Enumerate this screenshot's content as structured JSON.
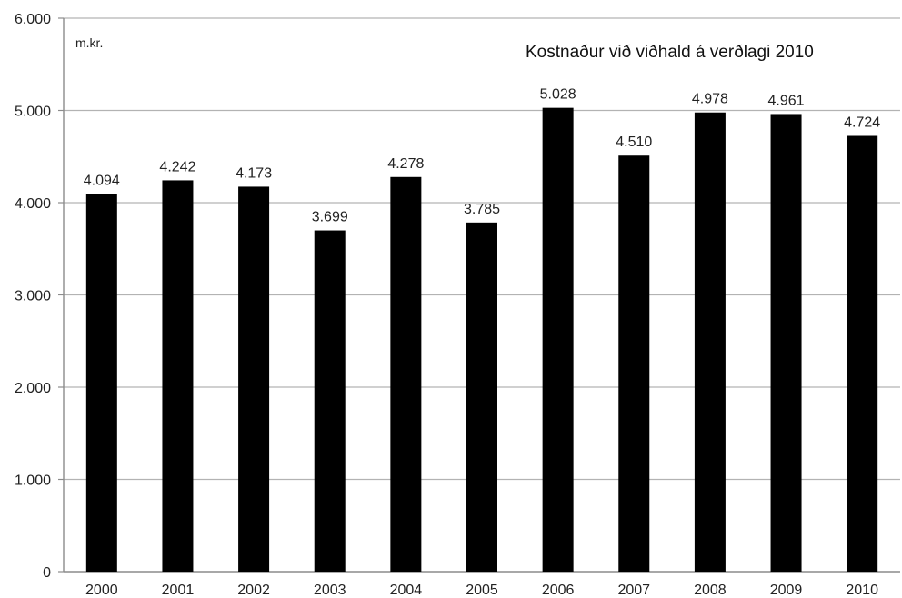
{
  "chart_data": {
    "type": "bar",
    "title": "Kostnaður við viðhald á verðlagi 2010",
    "unit_label": "m.kr.",
    "xlabel": "",
    "ylabel": "",
    "categories": [
      "2000",
      "2001",
      "2002",
      "2003",
      "2004",
      "2005",
      "2006",
      "2007",
      "2008",
      "2009",
      "2010"
    ],
    "values": [
      4094,
      4242,
      4173,
      3699,
      4278,
      3785,
      5028,
      4510,
      4978,
      4961,
      4724
    ],
    "value_labels": [
      "4.094",
      "4.242",
      "4.173",
      "3.699",
      "4.278",
      "3.785",
      "5.028",
      "4.510",
      "4.978",
      "4.961",
      "4.724"
    ],
    "ylim": [
      0,
      6000
    ],
    "yticks": [
      0,
      1000,
      2000,
      3000,
      4000,
      5000,
      6000
    ],
    "ytick_labels": [
      "0",
      "1.000",
      "2.000",
      "3.000",
      "4.000",
      "5.000",
      "6.000"
    ],
    "grid": true,
    "legend": "none",
    "colors": {
      "bar": "#000000",
      "grid": "#b3b3b3",
      "axis": "#8c8c8c"
    }
  }
}
